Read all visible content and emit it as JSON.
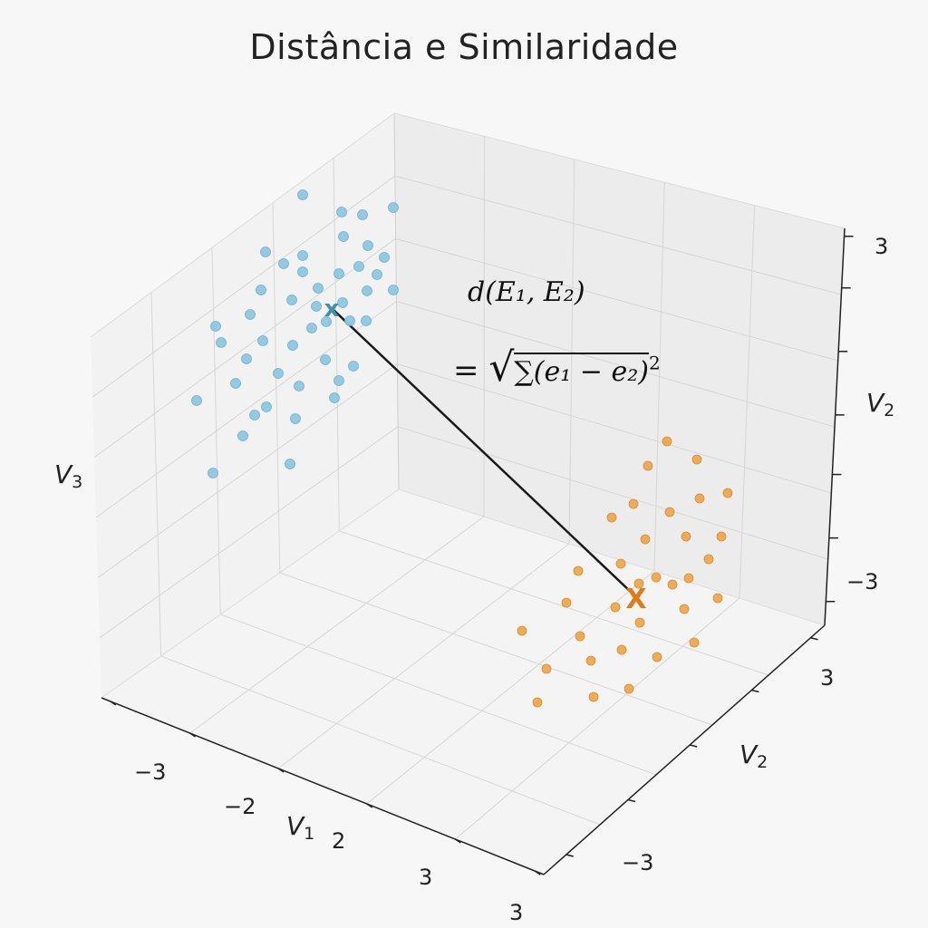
{
  "chart_data": {
    "type": "scatter",
    "title": "Distância e Similaridade",
    "axes": {
      "x": {
        "label_main": "V",
        "label_sub": "1",
        "tick_labels": [
          "−3",
          "−2",
          "2",
          "3",
          "3"
        ]
      },
      "y": {
        "label_main": "V",
        "label_sub": "2",
        "tick_labels": [
          "3",
          "−3"
        ]
      },
      "z": {
        "label_main": "V",
        "label_sub": "3"
      },
      "right": {
        "label_main": "V",
        "label_sub": "2",
        "tick_labels": [
          "3",
          "−3"
        ]
      }
    },
    "grid": true,
    "formula": {
      "line1": "d(E₁, E₂)",
      "line2_prefix": "=",
      "line2_body": "∑(e₁ − e₂)",
      "line2_exp": "2"
    },
    "series": [
      {
        "color": "#8ec6e0",
        "centroid_color": "#3f92a8",
        "centroid_label": "x",
        "centroid": [
          366,
          340
        ],
        "points": [
          [
            334,
            215
          ],
          [
            377,
            234
          ],
          [
            400,
            237
          ],
          [
            434,
            229
          ],
          [
            379,
            261
          ],
          [
            406,
            271
          ],
          [
            293,
            278
          ],
          [
            334,
            282
          ],
          [
            424,
            284
          ],
          [
            313,
            291
          ],
          [
            396,
            294
          ],
          [
            334,
            300
          ],
          [
            374,
            302
          ],
          [
            351,
            318
          ],
          [
            416,
            303
          ],
          [
            288,
            320
          ],
          [
            322,
            331
          ],
          [
            349,
            338
          ],
          [
            405,
            321
          ],
          [
            434,
            320
          ],
          [
            276,
            347
          ],
          [
            378,
            334
          ],
          [
            238,
            360
          ],
          [
            360,
            355
          ],
          [
            386,
            354
          ],
          [
            404,
            354
          ],
          [
            344,
            362
          ],
          [
            290,
            376
          ],
          [
            244,
            378
          ],
          [
            323,
            381
          ],
          [
            359,
            397
          ],
          [
            272,
            396
          ],
          [
            390,
            404
          ],
          [
            307,
            412
          ],
          [
            260,
            423
          ],
          [
            330,
            426
          ],
          [
            374,
            420
          ],
          [
            217,
            442
          ],
          [
            369,
            439
          ],
          [
            294,
            449
          ],
          [
            281,
            458
          ],
          [
            326,
            462
          ],
          [
            268,
            481
          ],
          [
            320,
            512
          ],
          [
            235,
            522
          ]
        ]
      },
      {
        "color": "#eda84b",
        "centroid_color": "#e07b19",
        "centroid_label": "X",
        "centroid": [
          702,
          661
        ],
        "points": [
          [
            736,
            487
          ],
          [
            715,
            514
          ],
          [
            769,
            507
          ],
          [
            772,
            550
          ],
          [
            803,
            544
          ],
          [
            699,
            556
          ],
          [
            739,
            565
          ],
          [
            675,
            571
          ],
          [
            757,
            592
          ],
          [
            712,
            595
          ],
          [
            796,
            592
          ],
          [
            782,
            617
          ],
          [
            685,
            622
          ],
          [
            724,
            637
          ],
          [
            638,
            630
          ],
          [
            760,
            638
          ],
          [
            705,
            644
          ],
          [
            742,
            645
          ],
          [
            792,
            660
          ],
          [
            625,
            665
          ],
          [
            679,
            670
          ],
          [
            755,
            672
          ],
          [
            706,
            687
          ],
          [
            576,
            696
          ],
          [
            640,
            702
          ],
          [
            686,
            717
          ],
          [
            725,
            725
          ],
          [
            652,
            729
          ],
          [
            766,
            709
          ],
          [
            603,
            738
          ],
          [
            694,
            760
          ],
          [
            655,
            769
          ],
          [
            593,
            775
          ]
        ]
      }
    ]
  }
}
